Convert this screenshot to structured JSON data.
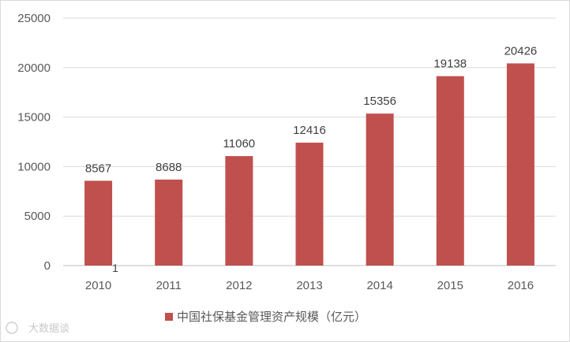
{
  "chart_data": {
    "type": "bar",
    "categories": [
      "2010",
      "2011",
      "2012",
      "2013",
      "2014",
      "2015",
      "2016"
    ],
    "series": [
      {
        "name": "中国社保基金管理资产规模（亿元）",
        "values": [
          8567,
          8688,
          11060,
          12416,
          15356,
          19138,
          20426
        ]
      }
    ],
    "data_labels": [
      "8567",
      "8688",
      "11060",
      "12416",
      "15356",
      "19138",
      "20426"
    ],
    "y_ticks": [
      "0",
      "5000",
      "10000",
      "15000",
      "20000",
      "25000"
    ],
    "ylim": [
      0,
      25000
    ],
    "grid": true,
    "legend_position": "bottom",
    "bar_color": "#C0504D",
    "annotation": "1"
  },
  "watermark": "大数据谈"
}
